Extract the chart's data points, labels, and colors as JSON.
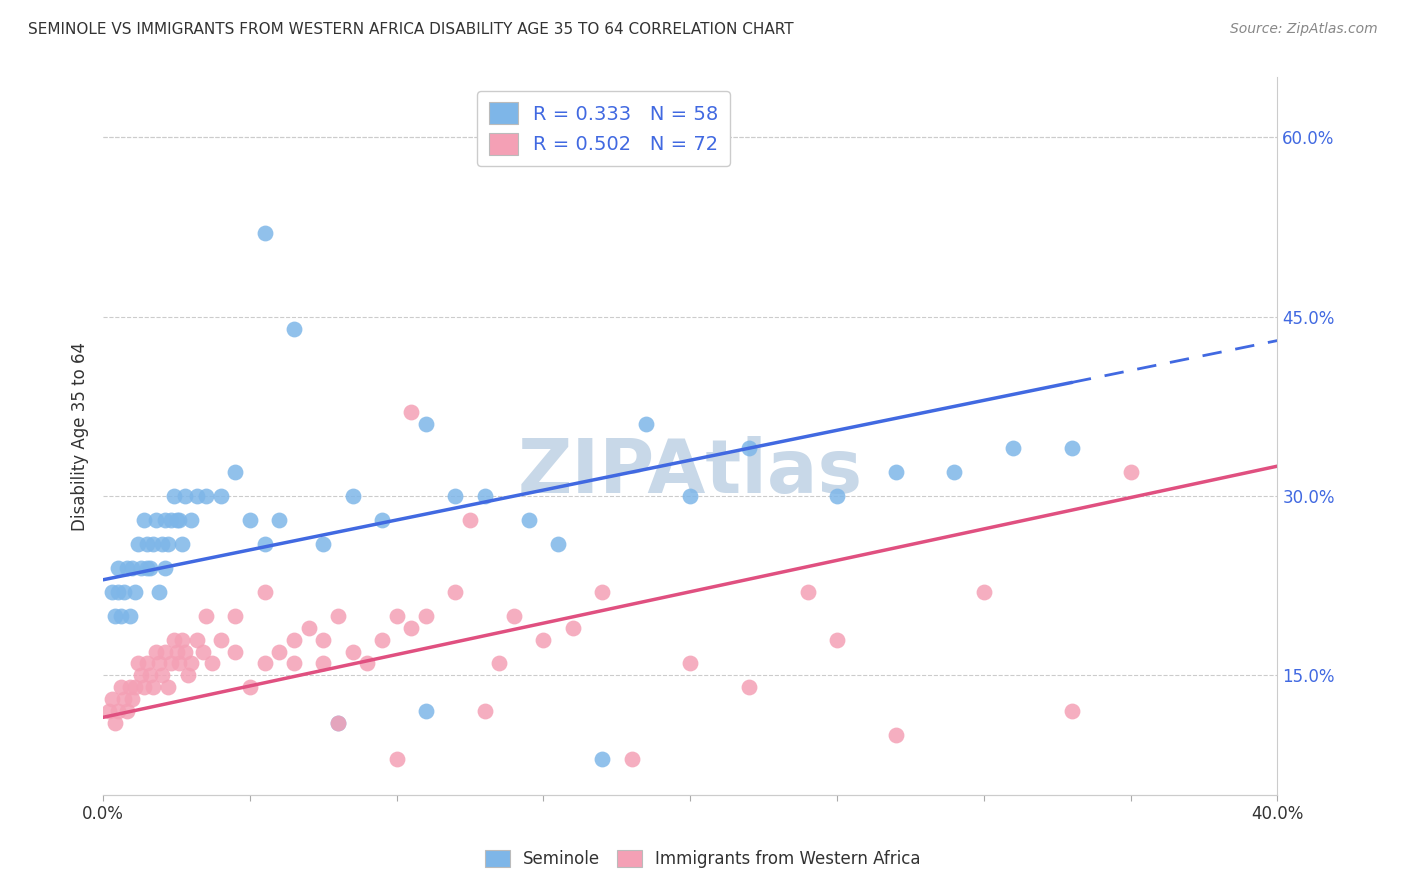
{
  "title": "SEMINOLE VS IMMIGRANTS FROM WESTERN AFRICA DISABILITY AGE 35 TO 64 CORRELATION CHART",
  "source": "Source: ZipAtlas.com",
  "ylabel": "Disability Age 35 to 64",
  "right_yticks": [
    15.0,
    30.0,
    45.0,
    60.0
  ],
  "right_ytick_labels": [
    "15.0%",
    "30.0%",
    "45.0%",
    "60.0%"
  ],
  "xmin": 0.0,
  "xmax": 40.0,
  "ymin": 5.0,
  "ymax": 65.0,
  "seminole_R": 0.333,
  "seminole_N": 58,
  "immigrants_R": 0.502,
  "immigrants_N": 72,
  "seminole_color": "#7EB6E8",
  "immigrants_color": "#F4A0B5",
  "seminole_line_color": "#4169E1",
  "immigrants_line_color": "#E05080",
  "watermark": "ZIPAtlas",
  "watermark_color": "#C8D8E8",
  "seminole_line_x0": 0.0,
  "seminole_line_y0": 23.0,
  "seminole_line_x1": 40.0,
  "seminole_line_y1": 43.0,
  "seminole_solid_end_x": 33.0,
  "immigrants_line_x0": 0.0,
  "immigrants_line_y0": 11.5,
  "immigrants_line_x1": 40.0,
  "immigrants_line_y1": 32.5,
  "grid_color": "#CCCCCC",
  "spine_color": "#CCCCCC",
  "seminole_scatter_x": [
    0.3,
    0.4,
    0.5,
    0.5,
    0.6,
    0.7,
    0.8,
    0.9,
    1.0,
    1.1,
    1.2,
    1.3,
    1.4,
    1.5,
    1.5,
    1.6,
    1.7,
    1.8,
    1.9,
    2.0,
    2.1,
    2.1,
    2.2,
    2.3,
    2.4,
    2.5,
    2.6,
    2.7,
    2.8,
    3.0,
    3.2,
    3.5,
    4.0,
    4.5,
    5.0,
    5.5,
    6.0,
    7.5,
    8.0,
    9.5,
    11.0,
    11.0,
    12.0,
    13.0,
    14.5,
    15.5,
    17.0,
    18.5,
    20.0,
    22.0,
    25.0,
    27.0,
    29.0,
    31.0,
    33.0,
    6.5,
    8.5,
    5.5
  ],
  "seminole_scatter_y": [
    22,
    20,
    24,
    22,
    20,
    22,
    24,
    20,
    24,
    22,
    26,
    24,
    28,
    26,
    24,
    24,
    26,
    28,
    22,
    26,
    24,
    28,
    26,
    28,
    30,
    28,
    28,
    26,
    30,
    28,
    30,
    30,
    30,
    32,
    28,
    52,
    28,
    26,
    11,
    28,
    36,
    12,
    30,
    30,
    28,
    26,
    8,
    36,
    30,
    34,
    30,
    32,
    32,
    34,
    34,
    44,
    30,
    26
  ],
  "immigrants_scatter_x": [
    0.2,
    0.3,
    0.4,
    0.5,
    0.6,
    0.7,
    0.8,
    0.9,
    1.0,
    1.1,
    1.2,
    1.3,
    1.4,
    1.5,
    1.6,
    1.7,
    1.8,
    1.9,
    2.0,
    2.1,
    2.2,
    2.3,
    2.4,
    2.5,
    2.6,
    2.7,
    2.8,
    2.9,
    3.0,
    3.2,
    3.4,
    3.5,
    3.7,
    4.0,
    4.5,
    5.0,
    5.5,
    6.0,
    6.5,
    7.0,
    7.5,
    8.0,
    8.5,
    9.0,
    9.5,
    10.0,
    10.5,
    11.0,
    12.0,
    13.0,
    13.5,
    14.0,
    15.0,
    16.0,
    17.0,
    18.0,
    20.0,
    22.0,
    24.0,
    25.0,
    27.0,
    30.0,
    33.0,
    35.0,
    10.5,
    12.5,
    4.5,
    5.5,
    6.5,
    7.5,
    8.0,
    10.0
  ],
  "immigrants_scatter_y": [
    12,
    13,
    11,
    12,
    14,
    13,
    12,
    14,
    13,
    14,
    16,
    15,
    14,
    16,
    15,
    14,
    17,
    16,
    15,
    17,
    14,
    16,
    18,
    17,
    16,
    18,
    17,
    15,
    16,
    18,
    17,
    20,
    16,
    18,
    17,
    14,
    22,
    17,
    16,
    19,
    18,
    20,
    17,
    16,
    18,
    20,
    19,
    20,
    22,
    12,
    16,
    20,
    18,
    19,
    22,
    8,
    16,
    14,
    22,
    18,
    10,
    22,
    12,
    32,
    37,
    28,
    20,
    16,
    18,
    16,
    11,
    8
  ]
}
